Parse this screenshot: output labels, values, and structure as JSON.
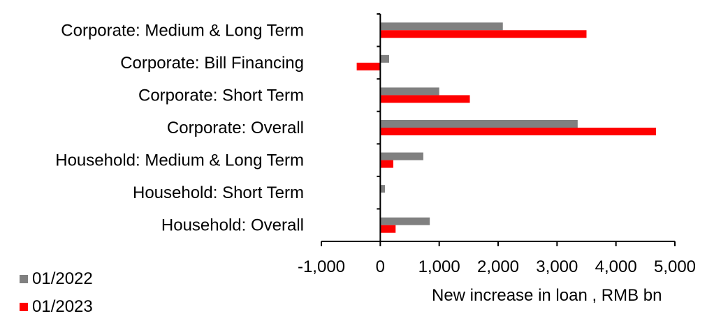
{
  "chart_data": {
    "type": "bar",
    "orientation": "horizontal",
    "title": "",
    "xlabel": "New increase in loan , RMB bn",
    "ylabel": "",
    "xlim": [
      -1000,
      5000
    ],
    "xticks": [
      -1000,
      0,
      1000,
      2000,
      3000,
      4000,
      5000
    ],
    "xtick_labels": [
      "-1,000",
      "0",
      "1,000",
      "2,000",
      "3,000",
      "4,000",
      "5,000"
    ],
    "grid": false,
    "legend_position": "bottom-left",
    "categories": [
      "Corporate: Medium & Long Term",
      "Corporate: Bill Financing",
      "Corporate: Short Term",
      "Corporate: Overall",
      "Household: Medium & Long Term",
      "Household: Short Term",
      "Household: Overall"
    ],
    "series": [
      {
        "name": "01/2022",
        "color": "#808080",
        "values": [
          2080,
          150,
          1000,
          3350,
          730,
          80,
          840
        ]
      },
      {
        "name": "01/2023",
        "color": "#ff0000",
        "values": [
          3500,
          -400,
          1520,
          4680,
          220,
          0,
          260
        ]
      }
    ]
  }
}
